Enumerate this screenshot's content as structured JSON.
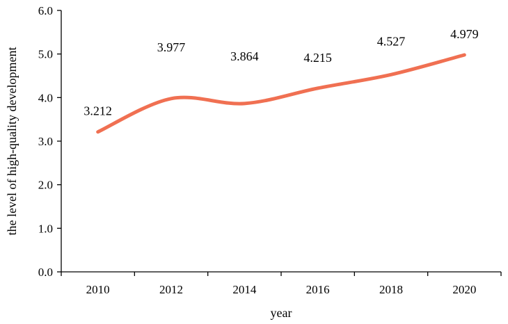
{
  "chart_data": {
    "type": "line",
    "categories": [
      "2010",
      "2012",
      "2014",
      "2016",
      "2018",
      "2020"
    ],
    "series": [
      {
        "values": [
          3.212,
          3.977,
          3.864,
          4.215,
          4.527,
          4.979
        ],
        "labels": [
          "3.212",
          "3.977",
          "3.864",
          "4.215",
          "4.527",
          "4.979"
        ],
        "color": "#F07052"
      }
    ],
    "y_ticks": [
      "0.0",
      "1.0",
      "2.0",
      "3.0",
      "4.0",
      "5.0",
      "6.0"
    ],
    "xlabel": "year",
    "ylabel": "the level of high-quality development",
    "ylim": [
      0,
      6
    ],
    "smooth": true,
    "grid": false,
    "legend": "none"
  }
}
